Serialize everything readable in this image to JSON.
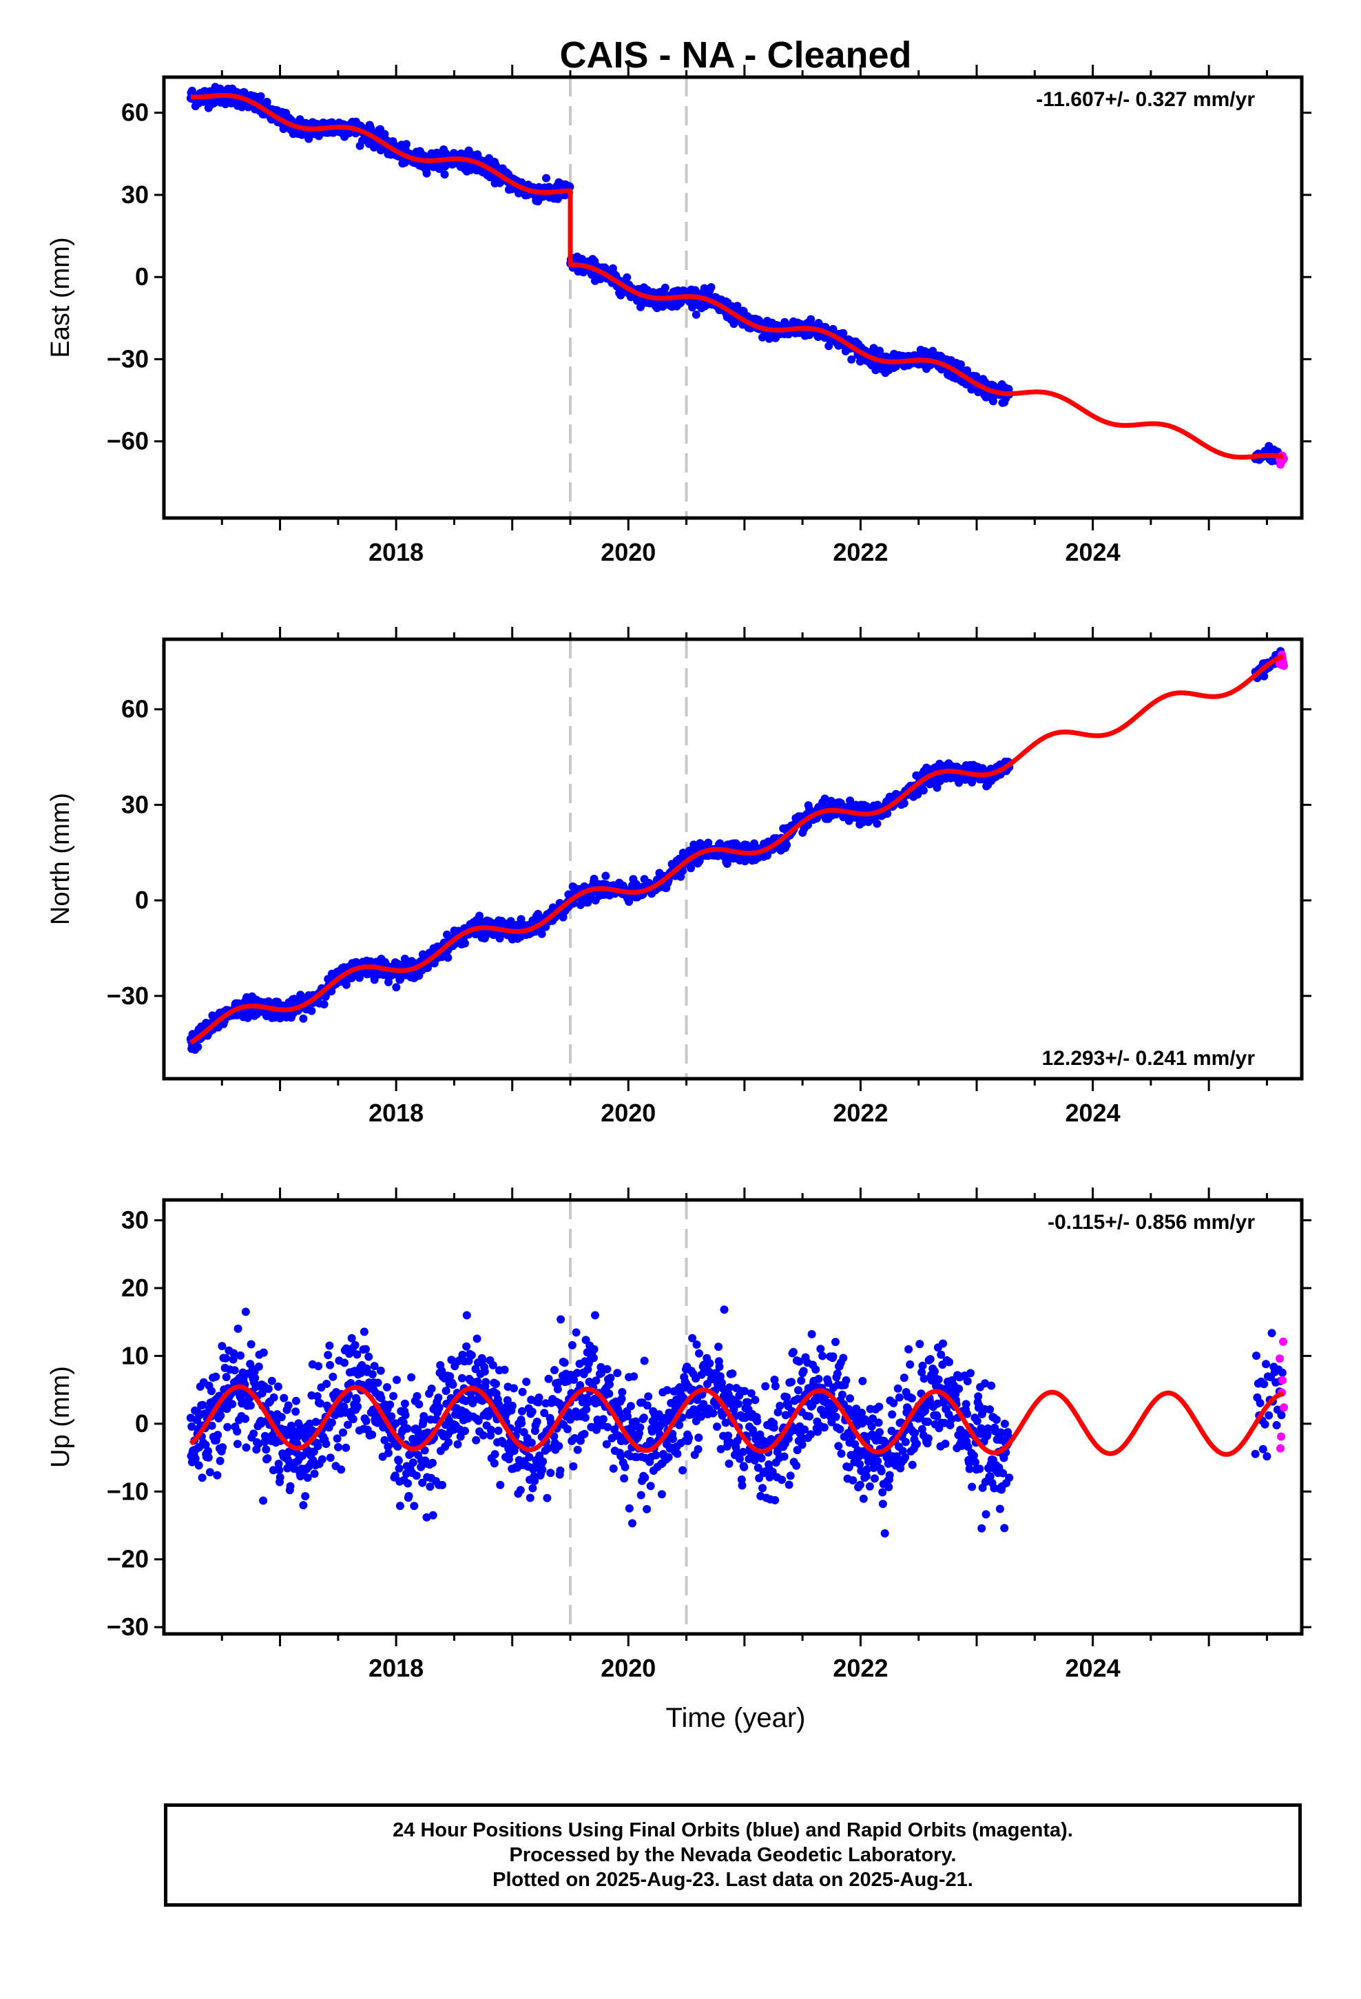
{
  "title": "CAIS  - NA - Cleaned",
  "xlabel": "Time (year)",
  "legend_lines": [
    "24 Hour Positions Using Final Orbits (blue) and Rapid Orbits (magenta).",
    "Processed by the Nevada Geodetic Laboratory.",
    "Plotted on 2025-Aug-23. Last data on 2025-Aug-21."
  ],
  "colors": {
    "final": "#0000ff",
    "rapid": "#ff00ff",
    "fit": "#ff0000",
    "events": "#c8c8c8"
  },
  "chart_data": [
    {
      "type": "scatter",
      "ylabel": "East (mm)",
      "rate_text": "-11.607+/- 0.327 mm/yr",
      "rate_position": "top-right",
      "xlim": [
        2016.0,
        2025.8
      ],
      "ylim": [
        -88,
        73
      ],
      "xticks": [
        2018,
        2020,
        2022,
        2024
      ],
      "yticks": [
        60,
        30,
        0,
        -30,
        -60
      ],
      "events": [
        2019.5,
        2020.5
      ],
      "final_data": [
        2016.23,
        2023.28
      ],
      "rapid_data": [
        2025.4,
        2025.64
      ],
      "trend": {
        "segments": [
          {
            "t0": 2016.23,
            "t1": 2019.5,
            "y0": 68.0,
            "rate": -11.607
          },
          {
            "t0": 2019.5,
            "t1": 2025.64,
            "y0": 3.0,
            "rate": -11.607
          }
        ],
        "annual_amp": 2.5,
        "scatter_sd": 1.6
      }
    },
    {
      "type": "scatter",
      "ylabel": "North (mm)",
      "rate_text": "12.293+/- 0.241 mm/yr",
      "rate_position": "bottom-right",
      "xlim": [
        2016.0,
        2025.8
      ],
      "ylim": [
        -56,
        82
      ],
      "xticks": [
        2018,
        2020,
        2022,
        2024
      ],
      "yticks": [
        60,
        30,
        0,
        -30
      ],
      "events": [
        2019.5,
        2020.5
      ],
      "final_data": [
        2016.23,
        2023.28
      ],
      "rapid_data": [
        2025.4,
        2025.64
      ],
      "trend": {
        "segments": [
          {
            "t0": 2016.23,
            "t1": 2025.64,
            "y0": -42.0,
            "rate": 12.293
          }
        ],
        "annual_amp": 3.0,
        "scatter_sd": 1.4
      }
    },
    {
      "type": "scatter",
      "ylabel": "Up (mm)",
      "rate_text": "-0.115+/- 0.856 mm/yr",
      "rate_position": "top-right",
      "xlim": [
        2016.0,
        2025.8
      ],
      "ylim": [
        -31,
        33
      ],
      "xticks": [
        2018,
        2020,
        2022,
        2024
      ],
      "yticks": [
        30,
        20,
        10,
        0,
        -10,
        -20,
        -30
      ],
      "events": [
        2019.5,
        2020.5
      ],
      "final_data": [
        2016.23,
        2023.28
      ],
      "rapid_data": [
        2025.4,
        2025.64
      ],
      "trend": {
        "segments": [
          {
            "t0": 2016.23,
            "t1": 2025.64,
            "y0": 1.0,
            "rate": -0.115
          }
        ],
        "annual_amp": 4.5,
        "scatter_sd": 4.0
      }
    }
  ]
}
